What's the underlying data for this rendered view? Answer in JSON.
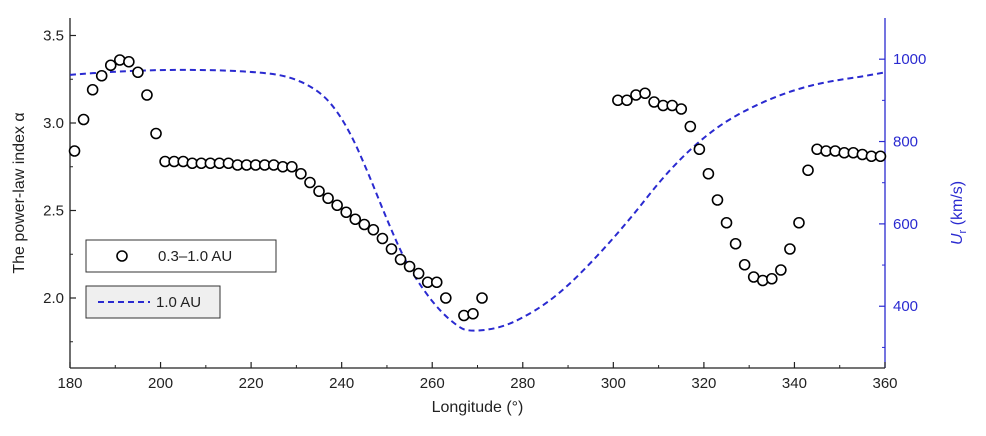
{
  "chart_data": {
    "type": "scatter",
    "xlabel": "Longitude (°)",
    "ylabel": "The power-law index α",
    "ylabel_right": "U_r (km/s)",
    "ylabel_right_main": "U",
    "ylabel_right_sub": "r",
    "ylabel_right_unit": " (km/s)",
    "xlim": [
      180,
      360
    ],
    "ylim": [
      1.6,
      3.6
    ],
    "ylim_right": [
      250,
      1100
    ],
    "x_ticks": [
      180,
      200,
      220,
      240,
      260,
      280,
      300,
      320,
      340,
      360
    ],
    "y_ticks": [
      2.0,
      2.5,
      3.0,
      3.5
    ],
    "y_tick_labels": [
      "2.0",
      "2.5",
      "3.0",
      "3.5"
    ],
    "y_right_ticks": [
      400,
      600,
      800,
      1000
    ],
    "grid": false,
    "legend_placement": "left",
    "legend": [
      {
        "label": "0.3–1.0 AU",
        "marker": "open-circle",
        "color": "#000000"
      },
      {
        "label": "1.0 AU",
        "marker": "dashed-line",
        "color": "#2a2ad0"
      }
    ],
    "series": [
      {
        "name": "0.3–1.0 AU",
        "axis": "left",
        "style": "open-circle",
        "color": "#000000",
        "points": [
          [
            181,
            2.84
          ],
          [
            183,
            3.02
          ],
          [
            185,
            3.19
          ],
          [
            187,
            3.27
          ],
          [
            189,
            3.33
          ],
          [
            191,
            3.36
          ],
          [
            193,
            3.35
          ],
          [
            195,
            3.29
          ],
          [
            197,
            3.16
          ],
          [
            199,
            2.94
          ],
          [
            201,
            2.78
          ],
          [
            203,
            2.78
          ],
          [
            205,
            2.78
          ],
          [
            207,
            2.77
          ],
          [
            209,
            2.77
          ],
          [
            211,
            2.77
          ],
          [
            213,
            2.77
          ],
          [
            215,
            2.77
          ],
          [
            217,
            2.76
          ],
          [
            219,
            2.76
          ],
          [
            221,
            2.76
          ],
          [
            223,
            2.76
          ],
          [
            225,
            2.76
          ],
          [
            227,
            2.75
          ],
          [
            229,
            2.75
          ],
          [
            231,
            2.71
          ],
          [
            233,
            2.66
          ],
          [
            235,
            2.61
          ],
          [
            237,
            2.57
          ],
          [
            239,
            2.53
          ],
          [
            241,
            2.49
          ],
          [
            243,
            2.45
          ],
          [
            245,
            2.42
          ],
          [
            247,
            2.39
          ],
          [
            249,
            2.34
          ],
          [
            251,
            2.28
          ],
          [
            253,
            2.22
          ],
          [
            255,
            2.18
          ],
          [
            257,
            2.14
          ],
          [
            259,
            2.09
          ],
          [
            261,
            2.09
          ],
          [
            263,
            2.0
          ],
          [
            267,
            1.9
          ],
          [
            269,
            1.91
          ],
          [
            271,
            2.0
          ],
          [
            301,
            3.13
          ],
          [
            303,
            3.13
          ],
          [
            305,
            3.16
          ],
          [
            307,
            3.17
          ],
          [
            309,
            3.12
          ],
          [
            311,
            3.1
          ],
          [
            313,
            3.1
          ],
          [
            315,
            3.08
          ],
          [
            317,
            2.98
          ],
          [
            319,
            2.85
          ],
          [
            321,
            2.71
          ],
          [
            323,
            2.56
          ],
          [
            325,
            2.43
          ],
          [
            327,
            2.31
          ],
          [
            329,
            2.19
          ],
          [
            331,
            2.12
          ],
          [
            333,
            2.1
          ],
          [
            335,
            2.11
          ],
          [
            337,
            2.16
          ],
          [
            339,
            2.28
          ],
          [
            341,
            2.43
          ],
          [
            343,
            2.73
          ],
          [
            345,
            2.85
          ],
          [
            347,
            2.84
          ],
          [
            349,
            2.84
          ],
          [
            351,
            2.83
          ],
          [
            353,
            2.83
          ],
          [
            355,
            2.82
          ],
          [
            357,
            2.81
          ],
          [
            359,
            2.81
          ]
        ]
      },
      {
        "name": "1.0 AU",
        "axis": "right",
        "style": "dashed-line",
        "color": "#2a2ad0",
        "points": [
          [
            180,
            962
          ],
          [
            190,
            970
          ],
          [
            200,
            974
          ],
          [
            210,
            974
          ],
          [
            220,
            970
          ],
          [
            228,
            960
          ],
          [
            234,
            930
          ],
          [
            238,
            890
          ],
          [
            242,
            820
          ],
          [
            246,
            720
          ],
          [
            250,
            610
          ],
          [
            254,
            510
          ],
          [
            258,
            440
          ],
          [
            262,
            385
          ],
          [
            266,
            348
          ],
          [
            268,
            340
          ],
          [
            272,
            342
          ],
          [
            276,
            352
          ],
          [
            280,
            372
          ],
          [
            285,
            405
          ],
          [
            290,
            450
          ],
          [
            295,
            505
          ],
          [
            300,
            565
          ],
          [
            305,
            630
          ],
          [
            310,
            700
          ],
          [
            315,
            760
          ],
          [
            320,
            810
          ],
          [
            325,
            850
          ],
          [
            330,
            880
          ],
          [
            335,
            905
          ],
          [
            340,
            925
          ],
          [
            345,
            940
          ],
          [
            350,
            950
          ],
          [
            355,
            958
          ],
          [
            360,
            968
          ]
        ]
      }
    ]
  }
}
